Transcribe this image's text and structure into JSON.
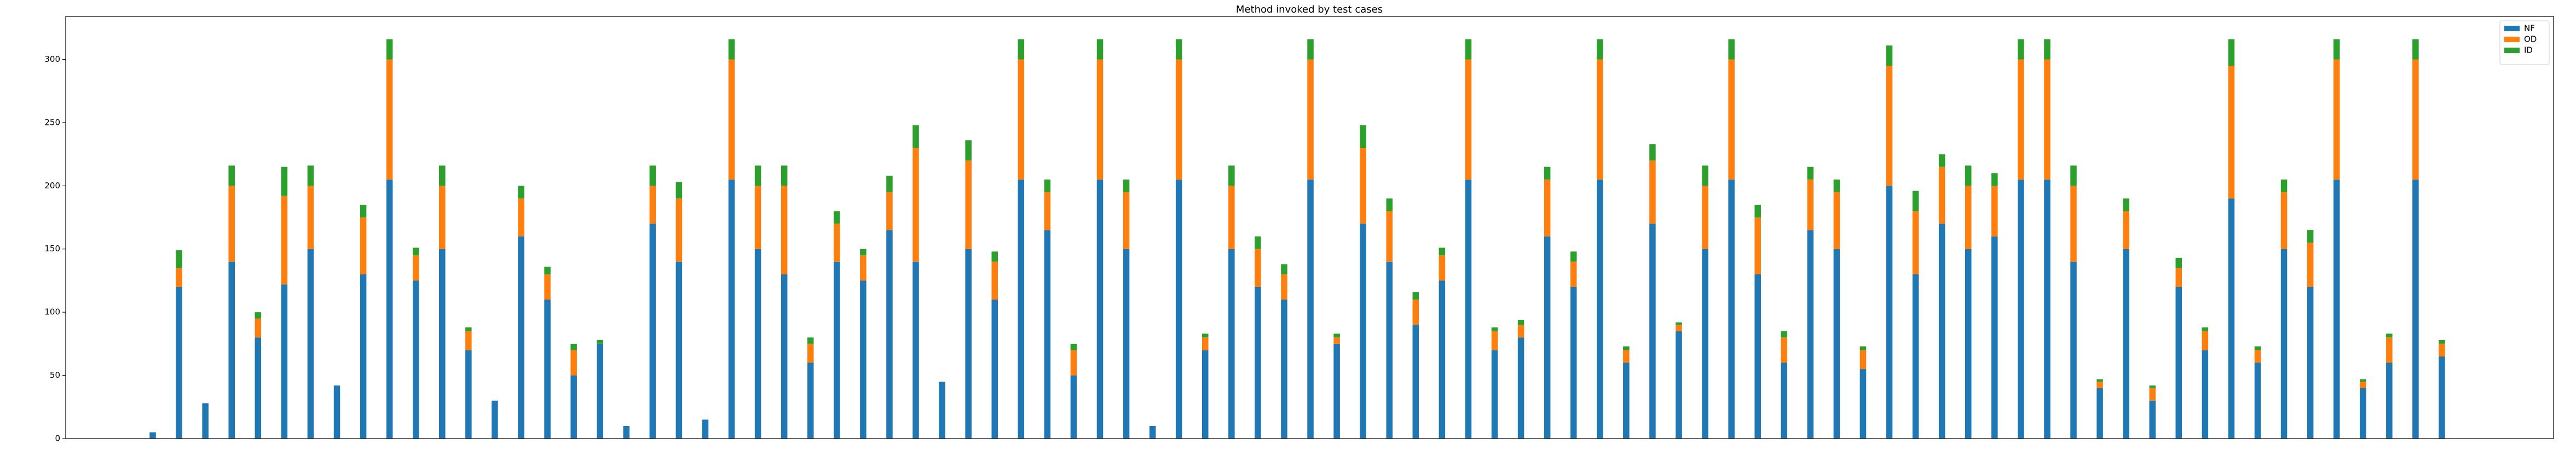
{
  "chart_data": {
    "type": "stacked_bar",
    "title": "Method invoked by test cases",
    "categories": [
      null,
      null,
      null,
      null,
      null,
      null,
      null,
      null,
      null,
      null,
      null,
      null,
      null,
      null,
      null,
      null,
      null,
      null,
      null,
      null,
      null,
      null,
      null,
      null,
      null,
      null,
      null,
      null,
      null,
      null,
      null,
      null,
      null,
      null,
      null,
      null,
      null,
      null,
      null,
      null,
      null,
      null,
      null,
      null,
      null,
      null,
      null,
      null,
      null,
      null,
      null,
      null,
      null,
      null,
      null,
      null,
      null,
      null,
      null,
      null,
      null,
      null,
      null,
      null,
      null,
      null,
      null,
      null,
      null,
      null,
      null,
      null,
      null,
      null,
      null,
      null,
      null,
      null,
      null,
      null,
      null,
      null,
      null,
      null,
      null,
      null,
      null,
      null
    ],
    "series": [
      {
        "name": "NF",
        "color": "#1f77b4",
        "values": [
          5,
          120,
          28,
          140,
          80,
          122,
          150,
          42,
          130,
          205,
          125,
          150,
          70,
          30,
          160,
          110,
          50,
          75,
          10,
          170,
          140,
          15,
          205,
          150,
          130,
          60,
          140,
          125,
          165,
          140,
          45,
          150,
          110,
          205,
          165,
          50,
          205,
          150,
          10,
          205,
          70,
          150,
          120,
          110,
          205,
          75,
          170,
          140,
          90,
          125,
          205,
          70,
          80,
          160,
          120,
          205,
          60,
          170,
          85,
          150,
          205,
          130,
          60,
          165,
          150,
          55,
          200,
          130,
          170,
          150,
          160,
          205,
          205,
          140,
          40,
          150,
          30,
          120,
          70,
          190,
          60,
          150,
          120,
          205,
          40,
          60,
          205,
          65
        ]
      },
      {
        "name": "OD",
        "color": "#ff7f0e",
        "values": [
          0,
          15,
          0,
          60,
          15,
          70,
          50,
          0,
          45,
          95,
          20,
          50,
          15,
          0,
          30,
          20,
          20,
          0,
          0,
          30,
          50,
          0,
          95,
          50,
          70,
          15,
          30,
          20,
          30,
          90,
          0,
          70,
          30,
          95,
          30,
          20,
          95,
          45,
          0,
          95,
          10,
          50,
          30,
          20,
          95,
          5,
          60,
          40,
          20,
          20,
          95,
          15,
          10,
          45,
          20,
          95,
          10,
          50,
          5,
          50,
          95,
          45,
          20,
          40,
          45,
          15,
          95,
          50,
          45,
          50,
          40,
          95,
          95,
          60,
          5,
          30,
          10,
          15,
          15,
          105,
          10,
          45,
          35,
          95,
          5,
          20,
          95,
          10
        ]
      },
      {
        "name": "ID",
        "color": "#2ca02c",
        "values": [
          0,
          14,
          0,
          16,
          5,
          23,
          16,
          0,
          10,
          16,
          6,
          16,
          3,
          0,
          10,
          6,
          5,
          3,
          0,
          16,
          13,
          0,
          16,
          16,
          16,
          5,
          10,
          5,
          13,
          18,
          0,
          16,
          8,
          16,
          10,
          5,
          16,
          10,
          0,
          16,
          3,
          16,
          10,
          8,
          16,
          3,
          18,
          10,
          6,
          6,
          16,
          3,
          4,
          10,
          8,
          16,
          3,
          13,
          2,
          16,
          16,
          10,
          5,
          10,
          10,
          3,
          16,
          16,
          10,
          16,
          10,
          16,
          16,
          16,
          2,
          10,
          2,
          8,
          3,
          21,
          3,
          10,
          10,
          16,
          2,
          3,
          16,
          3
        ]
      }
    ],
    "ylim": [
      0,
      334
    ],
    "yticks": [
      0,
      50,
      100,
      150,
      200,
      250,
      300
    ],
    "legend": "upper right"
  }
}
